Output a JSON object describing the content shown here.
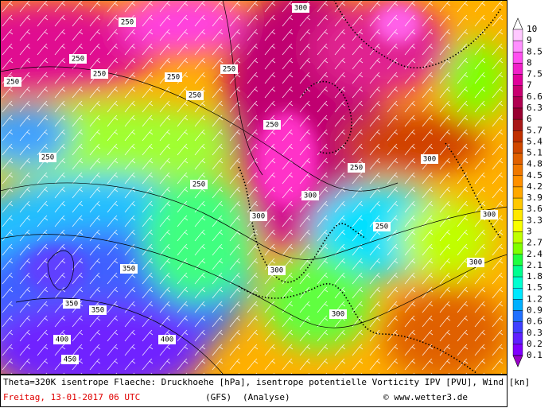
{
  "legend": {
    "labels": [
      "10",
      "9",
      "8.5",
      "8",
      "7.5",
      "7",
      "6.6",
      "6.3",
      "6",
      "5.7",
      "5.4",
      "5.1",
      "4.8",
      "4.5",
      "4.2",
      "3.9",
      "3.6",
      "3.3",
      "3",
      "2.7",
      "2.4",
      "2.1",
      "1.8",
      "1.5",
      "1.2",
      "0.9",
      "0.6",
      "0.3",
      "0.2",
      "0.1"
    ],
    "colors": [
      "#ffffff",
      "#ffc8ff",
      "#ff90ff",
      "#ff50f0",
      "#f020c8",
      "#e0009a",
      "#c80070",
      "#b00050",
      "#980030",
      "#a81818",
      "#c03000",
      "#d04800",
      "#e06000",
      "#f07800",
      "#ff9000",
      "#ffa800",
      "#ffc800",
      "#ffe800",
      "#f8ff00",
      "#c0ff00",
      "#80ff00",
      "#20ff40",
      "#00ff90",
      "#00ffd0",
      "#00e8ff",
      "#00b0ff",
      "#2070ff",
      "#4040ff",
      "#6020ff",
      "#8000ff",
      "#9800c8"
    ]
  },
  "contour_labels": [
    "250",
    "250",
    "250",
    "250",
    "250",
    "250",
    "250",
    "250",
    "250",
    "250",
    "250",
    "250",
    "300",
    "300",
    "300",
    "300",
    "300",
    "300",
    "300",
    "300",
    "350",
    "350",
    "350",
    "400",
    "400",
    "450"
  ],
  "footer": {
    "title": "Theta=320K isentrope Flaeche: Druckhoehe [hPa], isentrope potentielle Vorticity IPV [PVU], Wind [kn]",
    "date": "Freitag, 13-01-2017  06 UTC",
    "model": "(GFS)",
    "run": "(Analyse)",
    "credit": "© www.wetter3.de"
  }
}
